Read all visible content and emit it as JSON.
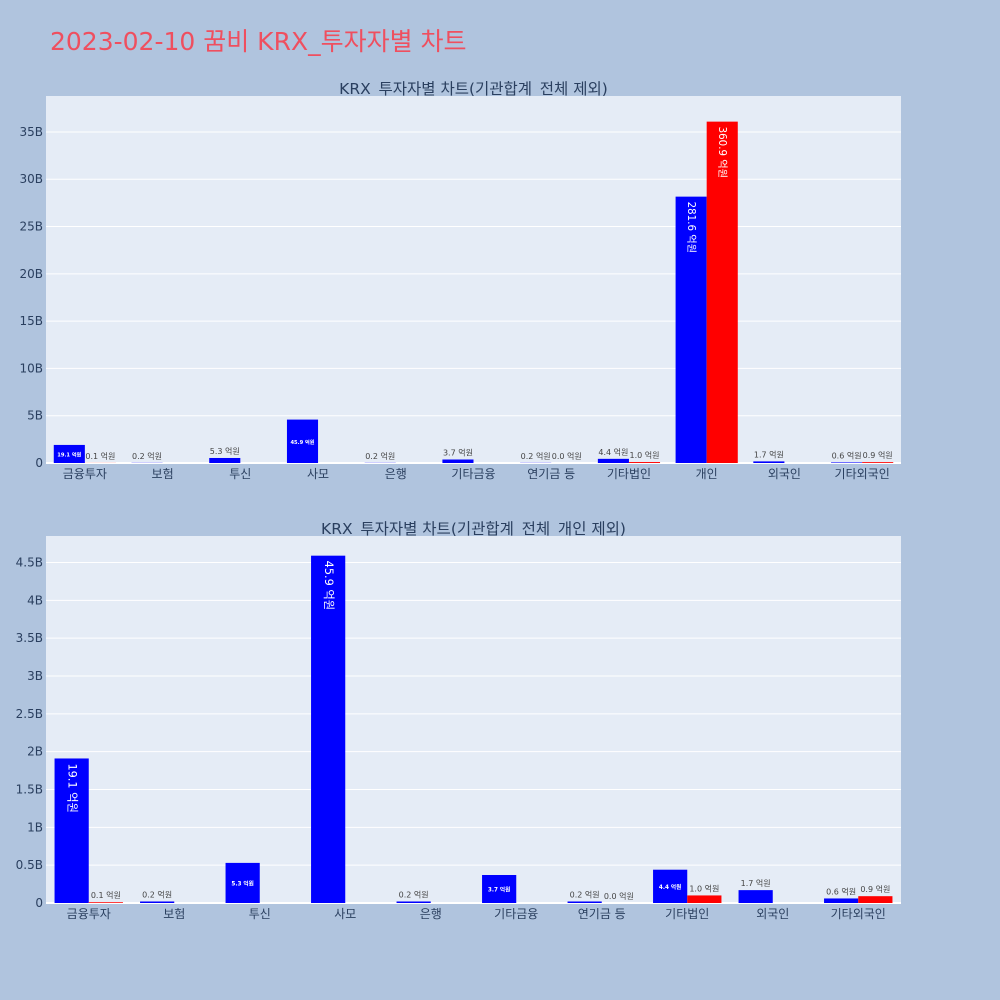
{
  "title": "2023-02-10 꿈비 KRX_투자자별 차트",
  "colors": {
    "buy": "#0000ff",
    "sell": "#ff0000",
    "plot_bg": "#e5ecf6",
    "page_bg": "#b0c4de",
    "title": "#ef4f5f"
  },
  "chart_data": [
    {
      "type": "bar",
      "title": "KRX_투자자별 차트(기관합계_전체 제외)",
      "categories": [
        "금융투자",
        "보험",
        "투신",
        "사모",
        "은행",
        "기타금융",
        "연기금 등",
        "기타법인",
        "개인",
        "외국인",
        "기타외국인"
      ],
      "series": [
        {
          "values": [
            1910000000,
            20000000,
            530000000,
            4590000000,
            20000000,
            370000000,
            20000000,
            440000000,
            28160000000,
            170000000,
            60000000
          ],
          "labels": [
            "19.1 억원",
            "0.2 억원",
            "5.3 억원",
            "45.9 억원",
            "0.2 억원",
            "3.7 억원",
            "0.2 억원",
            "4.4 억원",
            "281.6 억원",
            "1.7 억원",
            "0.6 억원"
          ]
        },
        {
          "values": [
            10000000,
            0,
            0,
            0,
            0,
            0,
            0,
            100000000,
            36090000000,
            0,
            90000000
          ],
          "labels": [
            "0.1 억원",
            "",
            "",
            "",
            "",
            "",
            "0.0 억원",
            "1.0 억원",
            "360.9 억원",
            "",
            "0.9 억원"
          ]
        }
      ],
      "ylim": [
        0,
        38800000000
      ],
      "yticks": [
        0,
        5000000000,
        10000000000,
        15000000000,
        20000000000,
        25000000000,
        30000000000,
        35000000000
      ],
      "yticklabels": [
        "0",
        "5B",
        "10B",
        "15B",
        "20B",
        "25B",
        "30B",
        "35B"
      ],
      "grid": true
    },
    {
      "type": "bar",
      "title": "KRX_투자자별 차트(기관합계_전체_개인 제외)",
      "categories": [
        "금융투자",
        "보험",
        "투신",
        "사모",
        "은행",
        "기타금융",
        "연기금 등",
        "기타법인",
        "외국인",
        "기타외국인"
      ],
      "series": [
        {
          "values": [
            1910000000,
            20000000,
            530000000,
            4590000000,
            20000000,
            370000000,
            20000000,
            440000000,
            170000000,
            60000000
          ],
          "labels": [
            "19.1 억원",
            "0.2 억원",
            "5.3 억원",
            "45.9 억원",
            "0.2 억원",
            "3.7 억원",
            "0.2 억원",
            "4.4 억원",
            "1.7 억원",
            "0.6 억원"
          ]
        },
        {
          "values": [
            10000000,
            0,
            0,
            0,
            0,
            0,
            0,
            100000000,
            0,
            90000000
          ],
          "labels": [
            "0.1 억원",
            "",
            "",
            "",
            "",
            "",
            "0.0 억원",
            "1.0 억원",
            "",
            "0.9 억원"
          ]
        }
      ],
      "ylim": [
        0,
        4850000000
      ],
      "yticks": [
        0,
        500000000,
        1000000000,
        1500000000,
        2000000000,
        2500000000,
        3000000000,
        3500000000,
        4000000000,
        4500000000
      ],
      "yticklabels": [
        "0",
        "0.5B",
        "1B",
        "1.5B",
        "2B",
        "2.5B",
        "3B",
        "3.5B",
        "4B",
        "4.5B"
      ],
      "grid": true
    }
  ]
}
